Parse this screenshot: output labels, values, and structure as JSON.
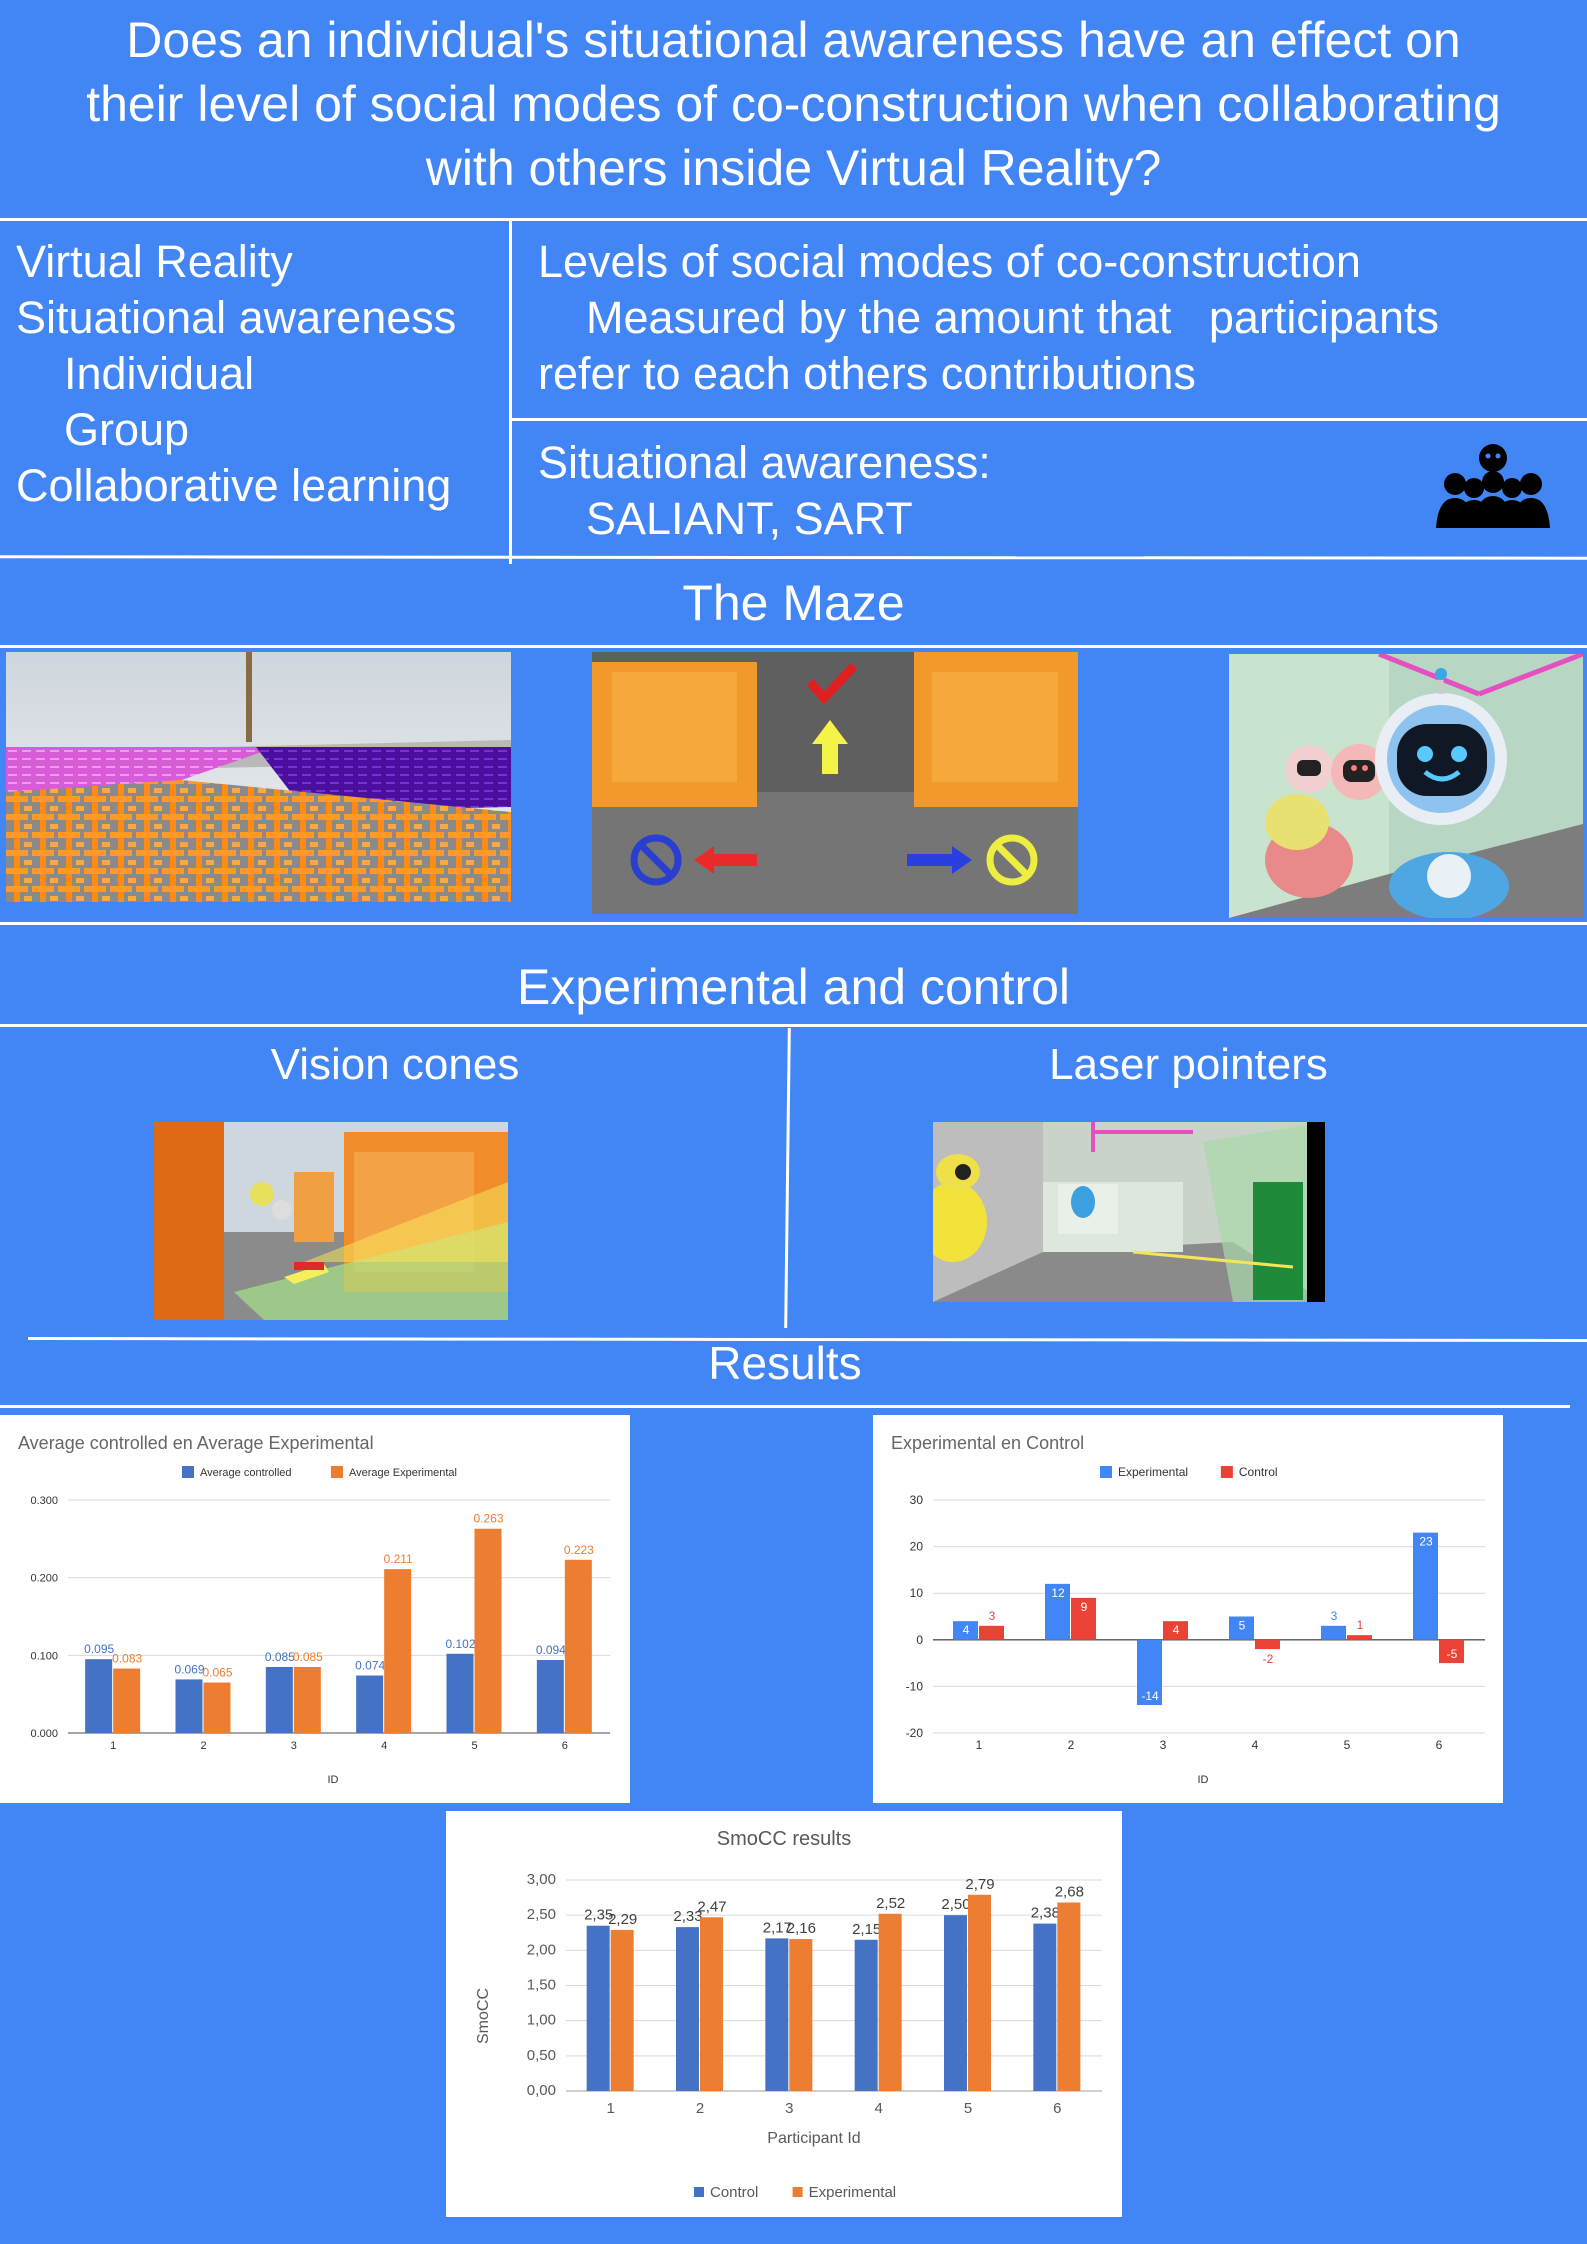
{
  "header": {
    "title_lines": [
      "Does an individual's situational awareness have an effect on",
      "their level of social modes of co-construction when collaborating",
      "with others inside Virtual Reality?"
    ]
  },
  "keywords": {
    "items": [
      "Virtual Reality",
      "Situational awareness",
      "Individual",
      "Group",
      "Collaborative learning"
    ]
  },
  "measures": {
    "co_construction_title": "Levels of social modes of co-construction",
    "co_construction_line1": "Measured by the amount that   participants",
    "co_construction_line2": "refer to each others contributions",
    "sa_title": "Situational awareness:",
    "sa_tools": "SALIANT, SART"
  },
  "sections": {
    "maze": "The Maze",
    "exp_control": "Experimental and control",
    "vision_cones": "Vision cones",
    "laser_pointers": "Laser pointers",
    "results": "Results"
  },
  "colors": {
    "background": "#4285f4",
    "blue_series": "#4472c4",
    "orange_series": "#ed7d31",
    "google_blue": "#4285f4",
    "google_red": "#ea4335"
  },
  "chart_data": [
    {
      "type": "bar",
      "title": "Average controlled en Average Experimental",
      "xlabel": "ID",
      "ylabel": "",
      "categories": [
        "1",
        "2",
        "3",
        "4",
        "5",
        "6"
      ],
      "series": [
        {
          "name": "Average controlled",
          "values": [
            0.095,
            0.069,
            0.085,
            0.074,
            0.102,
            0.094
          ],
          "labels": [
            "0.095",
            "0.069",
            "0.085",
            "0.074",
            "0.102",
            "0.094"
          ]
        },
        {
          "name": "Average Experimental",
          "values": [
            0.083,
            0.065,
            0.085,
            0.211,
            0.263,
            0.223
          ],
          "labels": [
            "0.083",
            "0.065",
            "0.085",
            "0.211",
            "0.263",
            "0.223"
          ]
        }
      ],
      "yticks": [
        "0.000",
        "0.100",
        "0.200",
        "0.300"
      ],
      "ylim": [
        0,
        0.3
      ],
      "legend": "top"
    },
    {
      "type": "bar",
      "title": "Experimental en Control",
      "xlabel": "ID",
      "ylabel": "",
      "categories": [
        "1",
        "2",
        "3",
        "4",
        "5",
        "6"
      ],
      "series": [
        {
          "name": "Experimental",
          "values": [
            4,
            12,
            -14,
            5,
            3,
            23
          ],
          "labels": [
            "4",
            "12",
            "-14",
            "5",
            "3",
            "23"
          ]
        },
        {
          "name": "Control",
          "values": [
            3,
            9,
            4,
            -2,
            1,
            -5
          ],
          "labels": [
            "3",
            "9",
            "4",
            "-2",
            "1",
            "-5"
          ]
        }
      ],
      "yticks": [
        "-20",
        "-10",
        "0",
        "10",
        "20",
        "30"
      ],
      "ylim": [
        -20,
        30
      ],
      "legend": "top"
    },
    {
      "type": "bar",
      "title": "SmoCC results",
      "xlabel": "Participant Id",
      "ylabel": "SmoCC",
      "categories": [
        "1",
        "2",
        "3",
        "4",
        "5",
        "6"
      ],
      "series": [
        {
          "name": "Control",
          "values": [
            2.35,
            2.33,
            2.17,
            2.15,
            2.5,
            2.38
          ],
          "labels": [
            "2,35",
            "2,33",
            "2,17",
            "2,15",
            "2,50",
            "2,38"
          ]
        },
        {
          "name": "Experimental",
          "values": [
            2.29,
            2.47,
            2.16,
            2.52,
            2.79,
            2.68
          ],
          "labels": [
            "2,29",
            "2,47",
            "2,16",
            "2,52",
            "2,79",
            "2,68"
          ]
        }
      ],
      "yticks": [
        "0,00",
        "0,50",
        "1,00",
        "1,50",
        "2,00",
        "2,50",
        "3,00"
      ],
      "ylim": [
        0,
        3
      ],
      "legend": "bottom"
    }
  ]
}
